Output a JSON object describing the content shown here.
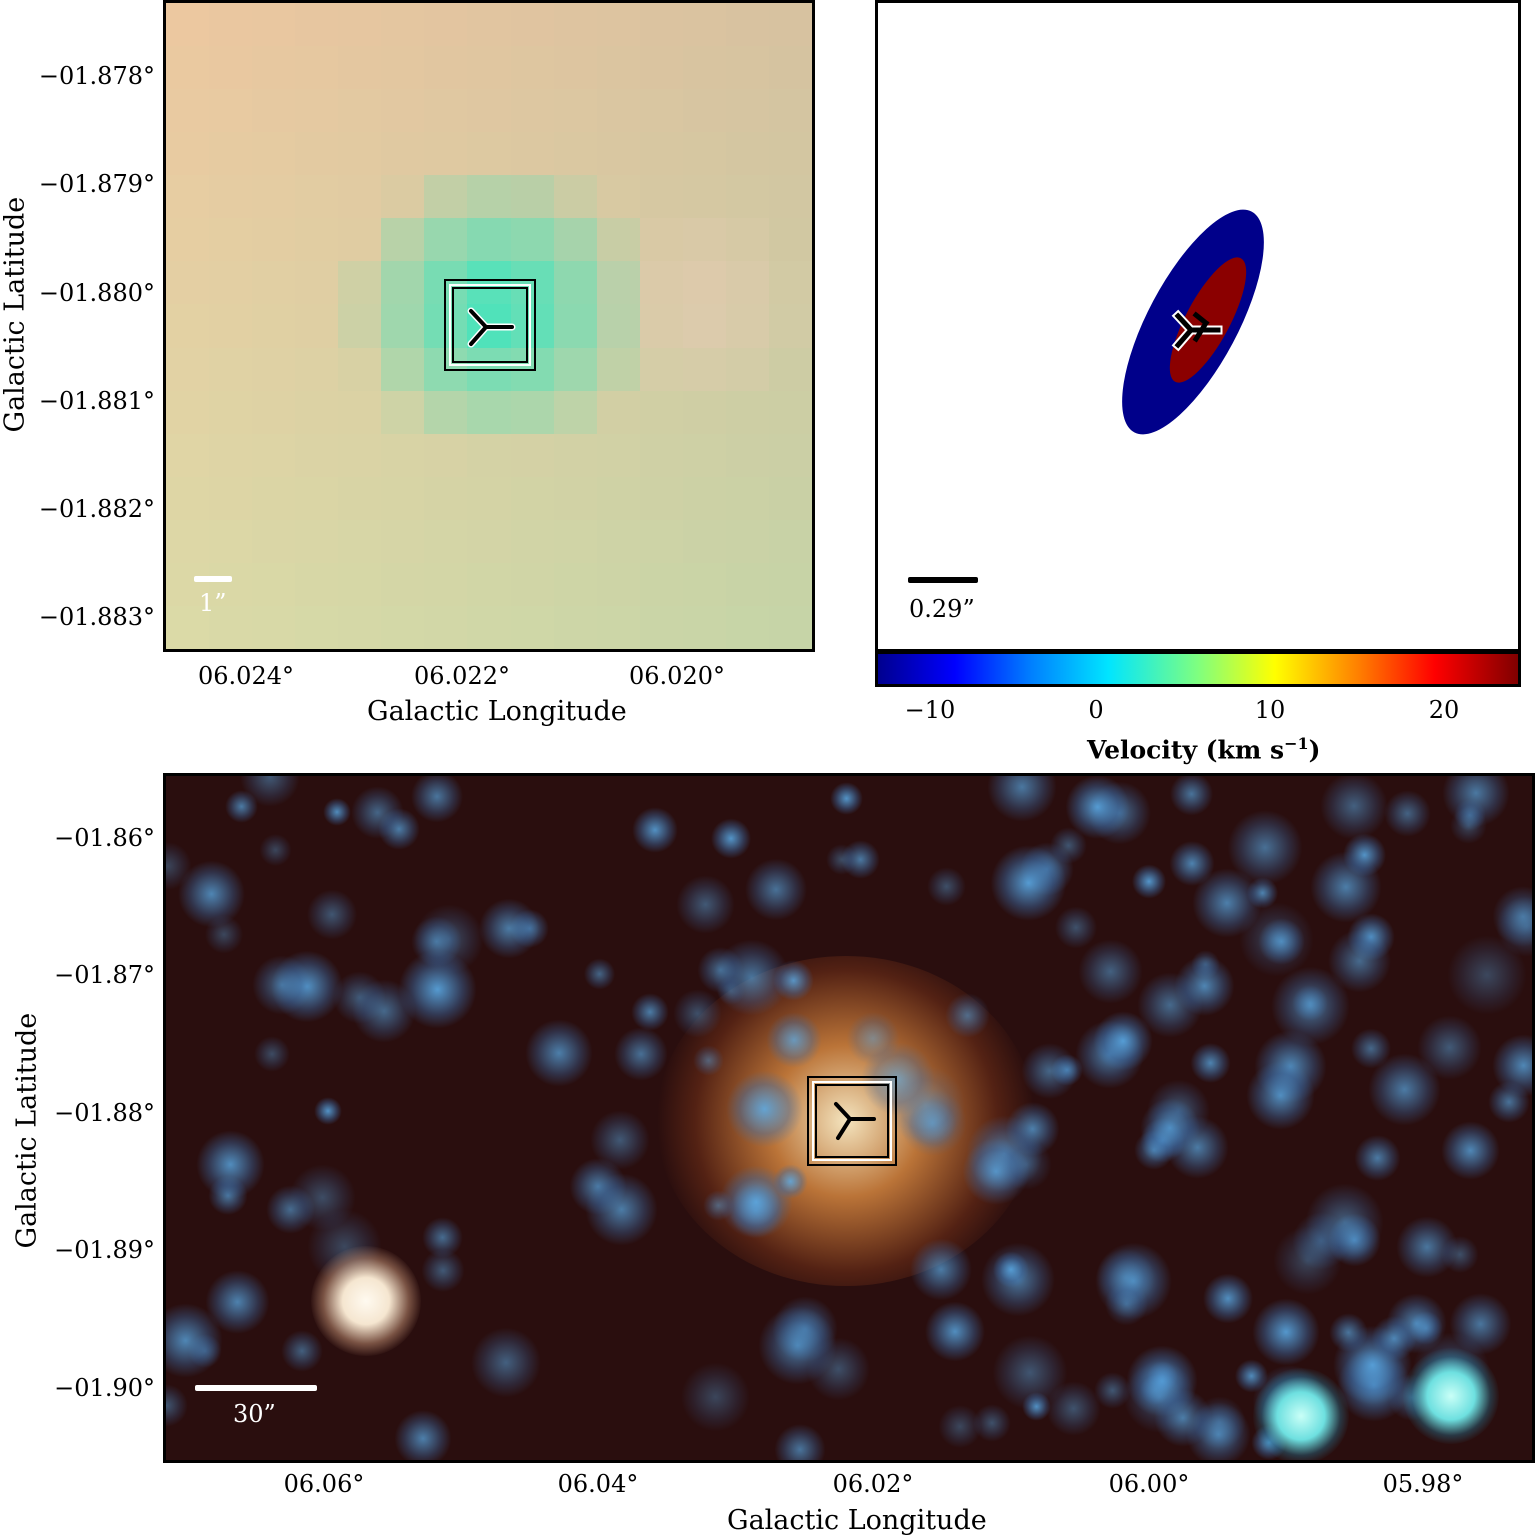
{
  "top_left": {
    "y_ticks": [
      "−01.878°",
      "−01.879°",
      "−01.880°",
      "−01.881°",
      "−01.882°",
      "−01.883°"
    ],
    "x_ticks": [
      "06.024°",
      "06.022°",
      "06.020°"
    ],
    "xlabel": "Galactic Longitude",
    "ylabel": "Galactic Latitude",
    "scale_label": "1”"
  },
  "top_right": {
    "scale_label": "0.29”",
    "colorbar": {
      "ticks": [
        "−10",
        "0",
        "10",
        "20"
      ],
      "label": "Velocity (km s",
      "label_sup": "−1",
      "label_end": ")"
    }
  },
  "bottom": {
    "y_ticks": [
      "−01.86°",
      "−01.87°",
      "−01.88°",
      "−01.89°",
      "−01.90°"
    ],
    "x_ticks": [
      "06.06°",
      "06.04°",
      "06.02°",
      "06.00°",
      "05.98°"
    ],
    "xlabel": "Galactic Longitude",
    "ylabel": "Galactic Latitude",
    "scale_label": "30”"
  }
}
